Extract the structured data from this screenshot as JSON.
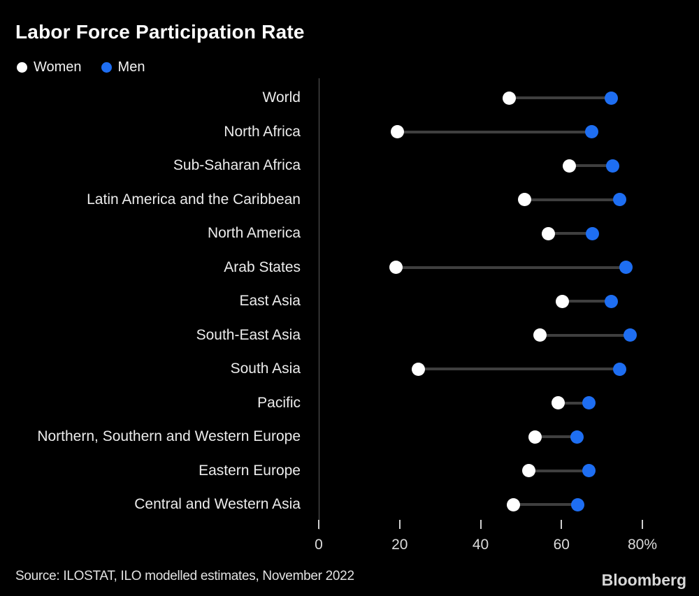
{
  "header": {
    "title": "Labor Force Participation Rate"
  },
  "legend": {
    "items": [
      {
        "label": "Women",
        "color": "#ffffff"
      },
      {
        "label": "Men",
        "color": "#1e6ef2"
      }
    ]
  },
  "chart_data": {
    "type": "scatter",
    "variant": "dumbbell",
    "title": "Labor Force Participation Rate",
    "xlabel": "",
    "ylabel": "",
    "xlim": [
      0,
      92
    ],
    "x_ticks": [
      0,
      20,
      40,
      60,
      80
    ],
    "x_tick_labels": [
      "0",
      "20",
      "40",
      "60",
      "80%"
    ],
    "grid": false,
    "legend_position": "top-left",
    "categories": [
      "World",
      "North Africa",
      "Sub-Saharan Africa",
      "Latin America and the Caribbean",
      "North America",
      "Arab States",
      "East Asia",
      "South-East Asia",
      "South Asia",
      "Pacific",
      "Northern, Southern and Western Europe",
      "Eastern Europe",
      "Central and Western Asia"
    ],
    "series": [
      {
        "name": "Women",
        "color": "#ffffff",
        "values": [
          47.0,
          19.5,
          62.0,
          50.8,
          56.8,
          19.1,
          60.3,
          54.7,
          24.7,
          59.1,
          53.4,
          52.0,
          48.2
        ]
      },
      {
        "name": "Men",
        "color": "#1e6ef2",
        "values": [
          72.3,
          67.4,
          72.6,
          74.3,
          67.6,
          76.0,
          72.3,
          77.0,
          74.3,
          66.8,
          63.9,
          66.8,
          64.0
        ]
      }
    ]
  },
  "colors": {
    "background": "#000000",
    "connector": "#3f3f3f",
    "axis": "#5c5c5c",
    "tick": "#cfcfcf",
    "women": "#ffffff",
    "men": "#1e6ef2"
  },
  "footer": {
    "source": "Source: ILOSTAT, ILO modelled estimates, November 2022",
    "brand": "Bloomberg"
  }
}
